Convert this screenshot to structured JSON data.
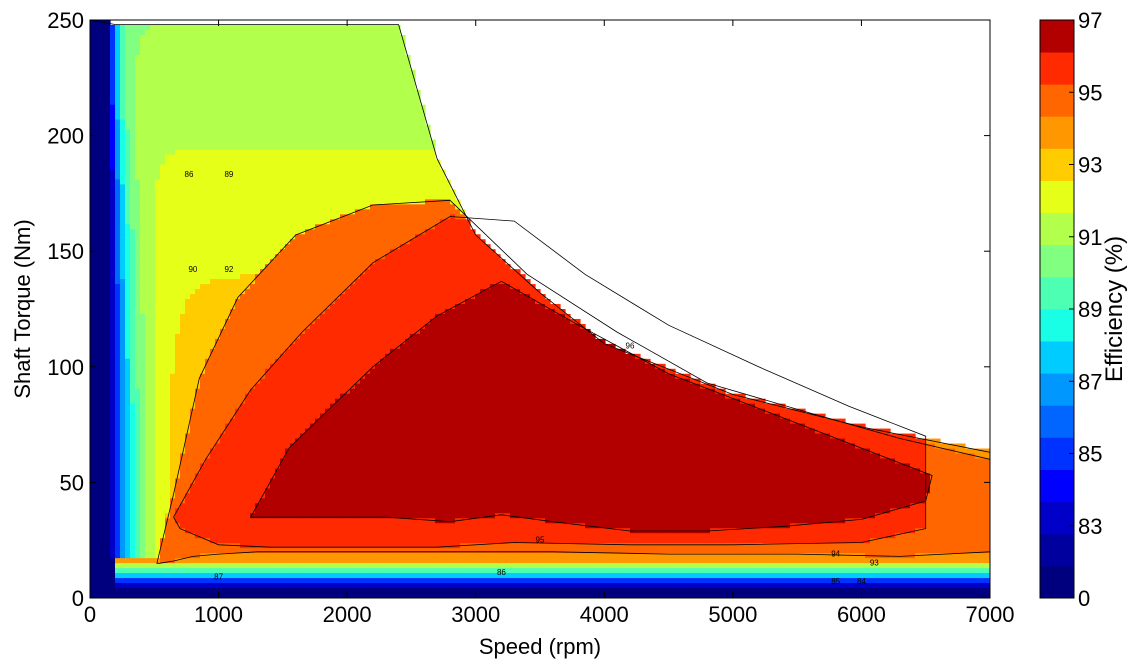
{
  "chart_data": {
    "type": "heatmap",
    "subtype": "filled-contour",
    "title": "",
    "xlabel": "Speed  (rpm)",
    "ylabel": "Shaft Torque  (Nm)",
    "xlim": [
      0,
      7000
    ],
    "ylim": [
      0,
      250
    ],
    "xticks": [
      0,
      1000,
      2000,
      3000,
      4000,
      5000,
      6000,
      7000
    ],
    "yticks": [
      0,
      50,
      100,
      150,
      200,
      250
    ],
    "grid": false,
    "colorbar": {
      "label": "Efficiency (%)",
      "ticks": [
        "0",
        "83",
        "85",
        "87",
        "89",
        "91",
        "93",
        "95",
        "97"
      ],
      "levels": [
        0,
        82,
        83,
        84,
        85,
        86,
        87,
        88,
        89,
        90,
        91,
        92,
        93,
        94,
        95,
        96,
        97
      ],
      "colors": [
        "#00007f",
        "#00009f",
        "#0000c8",
        "#0000ff",
        "#0032ff",
        "#0066ff",
        "#0098ff",
        "#00ccff",
        "#18ffe6",
        "#4cffb2",
        "#80ff80",
        "#b2ff4c",
        "#e6ff18",
        "#ffcc00",
        "#ff9800",
        "#ff6600",
        "#ff2a00",
        "#b20000"
      ]
    },
    "max_torque_envelope": {
      "speed": [
        0,
        200,
        2400,
        2700,
        3000,
        3500,
        4000,
        5000,
        6000,
        7000
      ],
      "torque": [
        250,
        248,
        248,
        190,
        157,
        132,
        110,
        88,
        74,
        63
      ]
    },
    "regions": [
      {
        "label": "95-96",
        "speed": [
          520,
          650,
          850,
          1150,
          1600,
          2200,
          2800,
          3400,
          4100,
          4800,
          5600,
          6300,
          7000,
          7000,
          6300,
          5500,
          4500,
          3600,
          2900,
          2300,
          1800,
          1300,
          1000,
          800,
          650,
          540
        ],
        "torque": [
          15,
          45,
          95,
          130,
          157,
          170,
          172,
          140,
          115,
          93,
          80,
          69,
          60,
          20,
          18,
          19,
          19,
          20,
          20,
          20,
          20,
          20,
          19,
          18,
          16,
          15
        ]
      },
      {
        "label": "96-97",
        "speed": [
          650,
          900,
          1250,
          1650,
          2200,
          2800,
          3300,
          3850,
          4500,
          5200,
          5900,
          6500,
          6500,
          6000,
          5000,
          4200,
          3300,
          2700,
          2000,
          1400,
          1000,
          700
        ],
        "torque": [
          35,
          60,
          90,
          115,
          145,
          165,
          163,
          140,
          118,
          100,
          83,
          70,
          30,
          24,
          23,
          23,
          24,
          22,
          22,
          22,
          23,
          30
        ]
      },
      {
        "label": "97+",
        "speed": [
          1250,
          1550,
          2200,
          2700,
          3200,
          3800,
          4500,
          5200,
          5900,
          6550,
          6500,
          6000,
          5400,
          4800,
          4200,
          3600,
          3200,
          2800,
          2300,
          1700,
          1250
        ],
        "torque": [
          35,
          65,
          100,
          122,
          137,
          118,
          97,
          82,
          67,
          53,
          42,
          34,
          31,
          29,
          29,
          33,
          36,
          33,
          35,
          35,
          35
        ]
      }
    ],
    "contour_labels": [
      {
        "text": "86",
        "x": 770,
        "y": 182
      },
      {
        "text": "89",
        "x": 1080,
        "y": 182
      },
      {
        "text": "90",
        "x": 800,
        "y": 141
      },
      {
        "text": "92",
        "x": 1080,
        "y": 141
      },
      {
        "text": "96",
        "x": 4200,
        "y": 108
      },
      {
        "text": "95",
        "x": 3500,
        "y": 24
      },
      {
        "text": "94",
        "x": 5800,
        "y": 18
      },
      {
        "text": "93",
        "x": 6100,
        "y": 14
      },
      {
        "text": "87",
        "x": 1000,
        "y": 8
      },
      {
        "text": "86",
        "x": 3200,
        "y": 10
      },
      {
        "text": "85",
        "x": 5800,
        "y": 6
      },
      {
        "text": "84",
        "x": 6000,
        "y": 6
      }
    ]
  }
}
